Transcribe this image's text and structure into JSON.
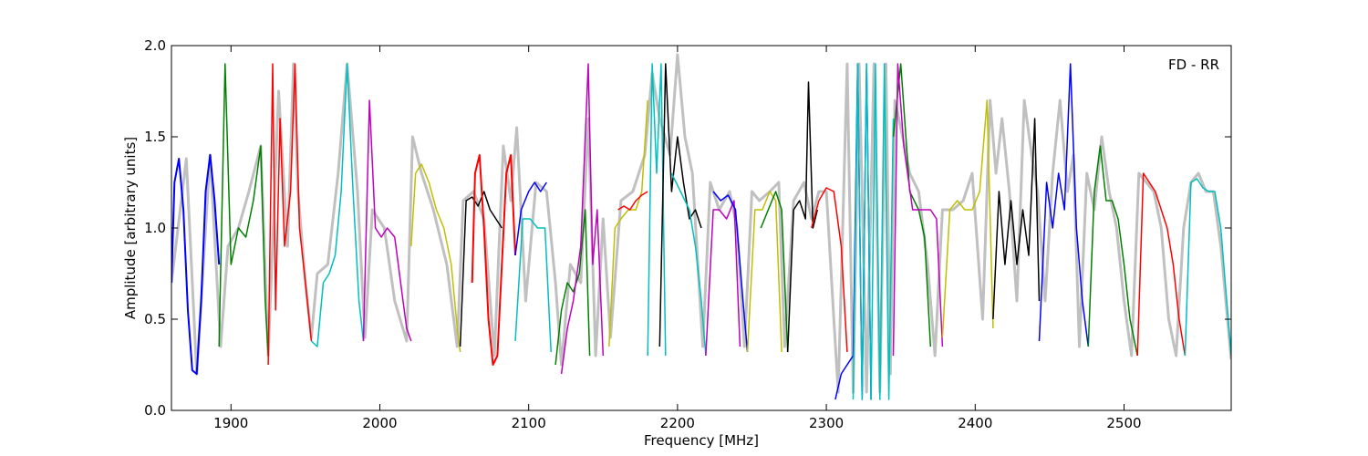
{
  "chart_data": {
    "type": "line",
    "title": "",
    "annotation": "FD - RR",
    "xlabel": "Frequency [MHz]",
    "ylabel": "Amplitude [arbitrary units]",
    "xlim": [
      1860,
      2572
    ],
    "ylim": [
      0.0,
      2.0
    ],
    "xticks": [
      1900,
      2000,
      2100,
      2200,
      2300,
      2400,
      2500
    ],
    "yticks": [
      0.0,
      0.5,
      1.0,
      1.5,
      2.0
    ],
    "xtick_labels": [
      "1900",
      "2000",
      "2100",
      "2200",
      "2300",
      "2400",
      "2500"
    ],
    "ytick_labels": [
      "0.0",
      "0.5",
      "1.0",
      "1.5",
      "2.0"
    ],
    "grid": false,
    "colors": {
      "background": "#c0c0c0",
      "blue": "#0000ff",
      "green": "#008000",
      "red": "#ff0000",
      "cyan": "#00bfbf",
      "magenta": "#bf00bf",
      "yellow": "#bfbf00",
      "black": "#000000"
    },
    "series": [
      {
        "color": "#c0c0c0",
        "width": 3,
        "x": [
          1860,
          1870,
          1877,
          1886,
          1893,
          1898,
          1905,
          1912,
          1920,
          1925,
          1932,
          1938,
          1942,
          1945,
          1950,
          1954,
          1958,
          1965,
          1972,
          1978,
          1985,
          1990,
          1995,
          2003,
          2010,
          2018,
          2022,
          2028,
          2036,
          2045,
          2052,
          2056,
          2063,
          2070,
          2077,
          2083,
          2088,
          2092,
          2098,
          2105,
          2112,
          2118,
          2122,
          2128,
          2135,
          2140,
          2145,
          2150,
          2155,
          2162,
          2170,
          2178,
          2183,
          2188,
          2195,
          2200,
          2205,
          2210,
          2217,
          2222,
          2228,
          2235,
          2240,
          2245,
          2250,
          2255,
          2262,
          2268,
          2272,
          2278,
          2285,
          2290,
          2295,
          2300,
          2305,
          2308,
          2314,
          2318,
          2322,
          2327,
          2332,
          2336,
          2340,
          2343,
          2346,
          2350,
          2356,
          2362,
          2368,
          2373,
          2378,
          2385,
          2392,
          2398,
          2405,
          2410,
          2414,
          2418,
          2423,
          2428,
          2433,
          2438,
          2442,
          2447,
          2452,
          2457,
          2462,
          2466,
          2470,
          2475,
          2480,
          2485,
          2490,
          2495,
          2500,
          2505,
          2510,
          2515,
          2520,
          2525,
          2530,
          2535,
          2540,
          2545,
          2550,
          2555,
          2560,
          2565,
          2572
        ],
        "y": [
          0.7,
          1.38,
          0.2,
          1.4,
          0.35,
          0.9,
          1.0,
          1.2,
          1.45,
          0.3,
          1.75,
          0.9,
          1.9,
          1.2,
          0.7,
          0.4,
          0.75,
          0.8,
          1.3,
          1.9,
          1.2,
          0.4,
          1.1,
          1.0,
          0.6,
          0.38,
          1.5,
          1.3,
          1.1,
          0.8,
          0.35,
          1.15,
          1.2,
          1.05,
          0.3,
          1.45,
          1.15,
          1.55,
          0.6,
          1.25,
          1.2,
          0.7,
          0.25,
          0.8,
          0.7,
          1.6,
          0.3,
          1.05,
          0.4,
          1.15,
          1.2,
          1.4,
          1.85,
          1.6,
          1.4,
          1.95,
          1.5,
          1.3,
          0.35,
          1.25,
          1.1,
          1.2,
          1.0,
          0.35,
          1.2,
          1.15,
          1.2,
          1.25,
          0.35,
          1.15,
          1.25,
          1.05,
          1.2,
          1.2,
          0.5,
          0.1,
          1.9,
          0.1,
          1.9,
          0.1,
          1.9,
          0.1,
          1.9,
          0.2,
          1.7,
          1.55,
          1.3,
          1.2,
          0.8,
          0.3,
          1.1,
          1.1,
          1.15,
          1.3,
          0.5,
          1.7,
          1.3,
          1.6,
          1.2,
          0.6,
          1.7,
          1.4,
          1.2,
          0.6,
          1.3,
          1.7,
          1.2,
          1.4,
          0.35,
          1.3,
          1.1,
          1.5,
          1.2,
          1.0,
          0.6,
          0.3,
          1.3,
          1.25,
          1.2,
          1.0,
          0.5,
          0.3,
          1.0,
          1.25,
          1.3,
          1.2,
          1.2,
          0.9,
          0.28
        ]
      },
      {
        "color": "#0000ff",
        "width": 2,
        "x": [
          1860,
          1862,
          1865,
          1868,
          1871,
          1874,
          1877,
          1880,
          1883,
          1886,
          1889,
          1892
        ],
        "y": [
          0.7,
          1.25,
          1.38,
          1.1,
          0.55,
          0.22,
          0.2,
          0.6,
          1.2,
          1.4,
          1.15,
          0.8
        ]
      },
      {
        "color": "#008000",
        "width": 1.5,
        "x": [
          1892,
          1896,
          1900,
          1905,
          1910,
          1915,
          1920,
          1923,
          1925
        ],
        "y": [
          0.35,
          1.9,
          0.8,
          1.0,
          0.95,
          1.15,
          1.45,
          0.6,
          0.3
        ]
      },
      {
        "color": "#ff0000",
        "width": 1.5,
        "x": [
          1925,
          1928,
          1930,
          1933,
          1936,
          1940,
          1943,
          1946,
          1950,
          1954
        ],
        "y": [
          0.25,
          1.9,
          0.55,
          1.6,
          0.9,
          1.2,
          1.9,
          1.0,
          0.7,
          0.38
        ]
      },
      {
        "color": "#00bfbf",
        "width": 1.5,
        "x": [
          1954,
          1958,
          1962,
          1966,
          1970,
          1974,
          1978,
          1982,
          1986,
          1989
        ],
        "y": [
          0.38,
          0.35,
          0.7,
          0.75,
          0.85,
          1.2,
          1.9,
          1.2,
          0.6,
          0.38
        ]
      },
      {
        "color": "#bf00bf",
        "width": 1.5,
        "x": [
          1989,
          1993,
          1997,
          2001,
          2005,
          2010,
          2014,
          2018,
          2021
        ],
        "y": [
          0.38,
          1.7,
          1.0,
          0.95,
          1.0,
          0.95,
          0.7,
          0.45,
          0.38
        ]
      },
      {
        "color": "#bfbf00",
        "width": 1.5,
        "x": [
          2021,
          2024,
          2028,
          2033,
          2038,
          2043,
          2048,
          2052,
          2054
        ],
        "y": [
          0.9,
          1.3,
          1.35,
          1.25,
          1.1,
          1.0,
          0.8,
          0.45,
          0.32
        ]
      },
      {
        "color": "#000000",
        "width": 1.5,
        "x": [
          2054,
          2058,
          2062,
          2066,
          2070,
          2074,
          2078,
          2082
        ],
        "y": [
          0.35,
          1.15,
          1.17,
          1.12,
          1.2,
          1.1,
          1.05,
          1.0
        ]
      },
      {
        "color": "#ff0000",
        "width": 2,
        "x": [
          2062,
          2064,
          2067,
          2070,
          2073,
          2076,
          2079,
          2082,
          2085,
          2088,
          2091
        ],
        "y": [
          0.7,
          1.3,
          1.4,
          1.0,
          0.5,
          0.25,
          0.3,
          0.8,
          1.3,
          1.4,
          0.85
        ]
      },
      {
        "color": "#0000ff",
        "width": 1.5,
        "x": [
          2091,
          2095,
          2100,
          2104,
          2108,
          2112
        ],
        "y": [
          0.85,
          1.1,
          1.2,
          1.25,
          1.2,
          1.25
        ]
      },
      {
        "color": "#00bfbf",
        "width": 1.5,
        "x": [
          2091,
          2096,
          2101,
          2106,
          2111,
          2115
        ],
        "y": [
          0.38,
          1.05,
          1.05,
          1.0,
          1.0,
          0.32
        ]
      },
      {
        "color": "#008000",
        "width": 1.5,
        "x": [
          2118,
          2122,
          2126,
          2130,
          2134,
          2138,
          2141
        ],
        "y": [
          0.25,
          0.55,
          0.7,
          0.65,
          0.75,
          1.1,
          0.3
        ]
      },
      {
        "color": "#bf00bf",
        "width": 1.5,
        "x": [
          2122,
          2126,
          2130,
          2135,
          2140,
          2143,
          2146,
          2150
        ],
        "y": [
          0.2,
          0.45,
          0.6,
          0.9,
          1.9,
          0.8,
          1.1,
          0.3
        ]
      },
      {
        "color": "#bfbf00",
        "width": 1.5,
        "x": [
          2154,
          2158,
          2162,
          2167,
          2172,
          2176,
          2180
        ],
        "y": [
          0.35,
          1.0,
          1.05,
          1.1,
          1.1,
          1.2,
          1.7
        ]
      },
      {
        "color": "#ff0000",
        "width": 1.5,
        "x": [
          2160,
          2164,
          2168,
          2172,
          2176,
          2180
        ],
        "y": [
          1.1,
          1.12,
          1.1,
          1.15,
          1.18,
          1.2
        ]
      },
      {
        "color": "#00bfbf",
        "width": 1.5,
        "x": [
          2180,
          2183,
          2186,
          2189,
          2192
        ],
        "y": [
          0.3,
          1.9,
          1.3,
          1.9,
          0.3
        ]
      },
      {
        "color": "#000000",
        "width": 1.5,
        "x": [
          2188,
          2192,
          2196,
          2200,
          2204,
          2208,
          2212,
          2216
        ],
        "y": [
          0.35,
          1.9,
          1.2,
          1.5,
          1.25,
          1.05,
          1.1,
          1.0
        ]
      },
      {
        "color": "#00bfbf",
        "width": 1.5,
        "x": [
          2196,
          2202,
          2208,
          2212,
          2216,
          2219
        ],
        "y": [
          1.3,
          1.2,
          1.1,
          0.9,
          0.6,
          0.3
        ]
      },
      {
        "color": "#bf00bf",
        "width": 1.5,
        "x": [
          2219,
          2224,
          2228,
          2233,
          2238,
          2242
        ],
        "y": [
          0.3,
          1.1,
          1.1,
          1.05,
          1.15,
          0.35
        ]
      },
      {
        "color": "#0000ff",
        "width": 1.5,
        "x": [
          2224,
          2229,
          2234,
          2239,
          2244,
          2247
        ],
        "y": [
          1.2,
          1.15,
          1.18,
          1.1,
          0.6,
          0.32
        ]
      },
      {
        "color": "#bfbf00",
        "width": 1.5,
        "x": [
          2247,
          2252,
          2257,
          2262,
          2266,
          2270
        ],
        "y": [
          0.32,
          1.1,
          1.1,
          1.2,
          1.15,
          0.32
        ]
      },
      {
        "color": "#008000",
        "width": 1.5,
        "x": [
          2256,
          2261,
          2266,
          2270,
          2274
        ],
        "y": [
          1.0,
          1.1,
          1.2,
          1.1,
          0.32
        ]
      },
      {
        "color": "#000000",
        "width": 1.5,
        "x": [
          2274,
          2278,
          2282,
          2286,
          2288,
          2291,
          2294
        ],
        "y": [
          0.32,
          1.1,
          1.15,
          1.05,
          1.8,
          1.0,
          1.1
        ]
      },
      {
        "color": "#ff0000",
        "width": 1.5,
        "x": [
          2290,
          2295,
          2300,
          2305,
          2310,
          2314
        ],
        "y": [
          1.0,
          1.15,
          1.22,
          1.2,
          0.9,
          0.32
        ]
      },
      {
        "color": "#0000ff",
        "width": 1.5,
        "x": [
          2306,
          2310,
          2314,
          2318,
          2321,
          2324,
          2327,
          2330
        ],
        "y": [
          0.06,
          0.2,
          0.25,
          0.3,
          1.9,
          0.06,
          1.9,
          0.06
        ]
      },
      {
        "color": "#00bfbf",
        "width": 1.5,
        "x": [
          2318,
          2321,
          2324,
          2327,
          2330,
          2333,
          2336,
          2339,
          2342,
          2345
        ],
        "y": [
          0.06,
          1.9,
          0.06,
          1.9,
          0.06,
          1.9,
          0.06,
          1.9,
          0.06,
          1.6
        ]
      },
      {
        "color": "#008000",
        "width": 1.5,
        "x": [
          2345,
          2350,
          2356,
          2362,
          2366,
          2370
        ],
        "y": [
          1.5,
          1.9,
          1.2,
          1.1,
          0.95,
          0.35
        ]
      },
      {
        "color": "#bf00bf",
        "width": 1.5,
        "x": [
          2345,
          2348,
          2352,
          2358,
          2364,
          2370,
          2374,
          2378
        ],
        "y": [
          0.3,
          1.9,
          1.45,
          1.1,
          1.1,
          1.1,
          1.05,
          0.35
        ]
      },
      {
        "color": "#bfbf00",
        "width": 1.5,
        "x": [
          2378,
          2383,
          2388,
          2393,
          2398,
          2403,
          2408,
          2412
        ],
        "y": [
          0.4,
          1.1,
          1.15,
          1.1,
          1.1,
          1.2,
          1.7,
          0.45
        ]
      },
      {
        "color": "#000000",
        "width": 1.5,
        "x": [
          2412,
          2416,
          2420,
          2424,
          2428,
          2432,
          2436,
          2440,
          2443
        ],
        "y": [
          0.5,
          1.2,
          0.8,
          1.15,
          0.8,
          1.1,
          0.85,
          1.6,
          0.6
        ]
      },
      {
        "color": "#0000ff",
        "width": 1.5,
        "x": [
          2443,
          2448,
          2452,
          2456,
          2460,
          2464,
          2468,
          2472,
          2476
        ],
        "y": [
          0.38,
          1.25,
          1.0,
          1.3,
          1.1,
          1.9,
          1.0,
          0.6,
          0.35
        ]
      },
      {
        "color": "#008000",
        "width": 1.5,
        "x": [
          2476,
          2480,
          2484,
          2488,
          2492,
          2496,
          2500,
          2504,
          2509
        ],
        "y": [
          0.35,
          1.2,
          1.45,
          1.15,
          1.15,
          1.05,
          0.8,
          0.5,
          0.3
        ]
      },
      {
        "color": "#ff0000",
        "width": 1.5,
        "x": [
          2509,
          2513,
          2517,
          2521,
          2525,
          2529,
          2533,
          2537,
          2541
        ],
        "y": [
          0.3,
          1.3,
          1.25,
          1.2,
          1.1,
          1.0,
          0.8,
          0.5,
          0.3
        ]
      },
      {
        "color": "#00bfbf",
        "width": 1.5,
        "x": [
          2541,
          2545,
          2549,
          2553,
          2557,
          2561,
          2565,
          2569,
          2572
        ],
        "y": [
          0.3,
          1.25,
          1.27,
          1.22,
          1.2,
          1.2,
          1.0,
          0.6,
          0.3
        ]
      }
    ]
  }
}
